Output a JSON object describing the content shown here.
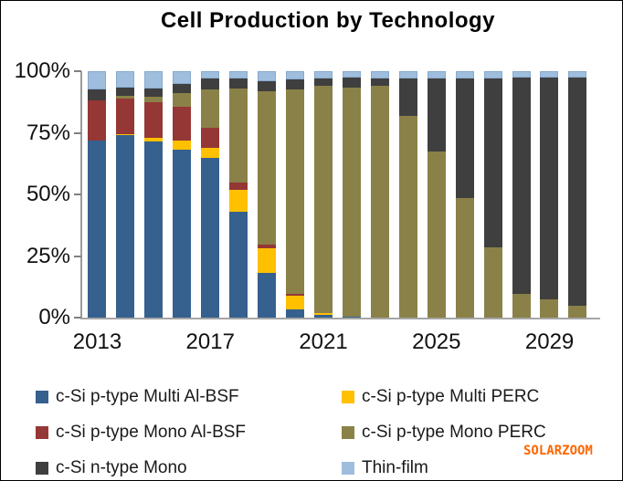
{
  "title": "Cell Production by Technology",
  "watermark": {
    "text": "SOLARZOOM",
    "color": "#FF6600"
  },
  "chart_data": {
    "type": "bar",
    "stacked": true,
    "units": "percent of total cell production",
    "title": "Cell Production by Technology",
    "xlabel": "",
    "ylabel": "",
    "ylim": [
      0,
      100
    ],
    "grid": false,
    "legend_position": "bottom",
    "legend_columns": 2,
    "y_axis": {
      "tick_labels_top_to_bottom": [
        "100%",
        "75%",
        "50%",
        "25%",
        "0%"
      ]
    },
    "x_axis": {
      "visible_labels": [
        "2013",
        "2017",
        "2021",
        "2025",
        "2029"
      ]
    },
    "categories": [
      "2013",
      "2014",
      "2015",
      "2016",
      "2017",
      "2018",
      "2019",
      "2020",
      "2021",
      "2022",
      "2023",
      "2024",
      "2025",
      "2026",
      "2027",
      "2028",
      "2029",
      "2030"
    ],
    "series": [
      {
        "name": "c-Si p-type Multi Al-BSF",
        "key": "multi-al-bsf",
        "color": "#36608E",
        "values": [
          72,
          74,
          71.5,
          68,
          65,
          43,
          18,
          3.5,
          1,
          0.5,
          0,
          0,
          0,
          0,
          0,
          0,
          0,
          0
        ]
      },
      {
        "name": "c-Si p-type Multi PERC",
        "key": "multi-perc",
        "color": "#FFC000",
        "values": [
          0,
          0.5,
          1.5,
          4,
          4,
          9,
          10,
          5.5,
          1,
          0,
          0,
          0,
          0,
          0,
          0,
          0,
          0,
          0
        ]
      },
      {
        "name": "c-Si p-type Mono Al-BSF",
        "key": "mono-al-bsf",
        "color": "#953735",
        "values": [
          16,
          14.5,
          14.5,
          13.5,
          8,
          3,
          1.5,
          0.5,
          0,
          0,
          0,
          0,
          0,
          0,
          0,
          0,
          0,
          0
        ]
      },
      {
        "name": "c-Si p-type Mono PERC",
        "key": "mono-perc",
        "color": "#8A8148",
        "values": [
          0,
          1,
          2,
          5.5,
          15.5,
          38,
          62.5,
          83,
          92,
          93,
          94,
          82,
          67.5,
          48.5,
          28.5,
          9.5,
          7.5,
          5
        ]
      },
      {
        "name": "c-Si n-type Mono",
        "key": "n-type-mono",
        "color": "#3F3F3F",
        "values": [
          4.5,
          3.5,
          3.5,
          4,
          4.5,
          4,
          4,
          4,
          3,
          4,
          3,
          15,
          29.5,
          48.5,
          68.5,
          88,
          90,
          92.5
        ]
      },
      {
        "name": "Thin-film",
        "key": "thin-film",
        "color": "#9FBEDD",
        "values": [
          7.5,
          6.5,
          7,
          5,
          3,
          3,
          4,
          3.5,
          3,
          2.5,
          3,
          3,
          3,
          3,
          3,
          2.5,
          2.5,
          2.5
        ]
      }
    ]
  }
}
